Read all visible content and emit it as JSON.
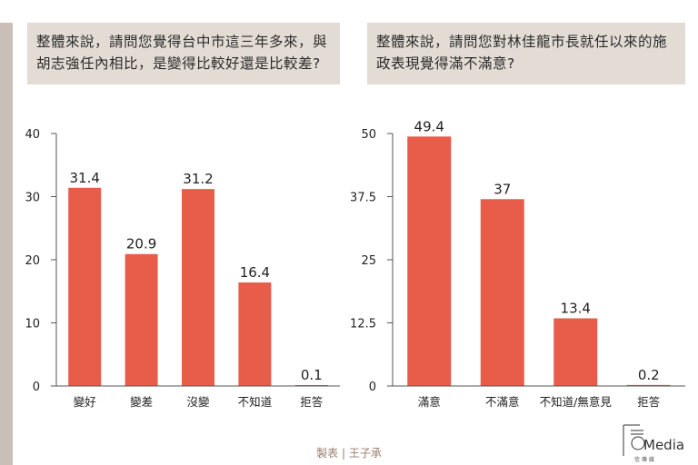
{
  "questions": {
    "left": "整體來說，請問您覺得台中市這三年多來，與胡志強任內相比，是變得比較好還是比較差?",
    "right": "整體來說，請問您對林佳龍市長就任以來的施政表現覺得滿不滿意?"
  },
  "footer": {
    "credit": "製表 | 王子承"
  },
  "logo": {
    "text": "Media",
    "subtext": "信 傳 媒"
  },
  "colors": {
    "bar": "#e85c4a",
    "axis": "#555555",
    "background": "#ffffff",
    "question_box": "#e3dcd5"
  },
  "chart_data": [
    {
      "type": "bar",
      "categories": [
        "變好",
        "變差",
        "沒變",
        "不知道",
        "拒答"
      ],
      "values": [
        31.4,
        20.9,
        31.2,
        16.4,
        0.1
      ],
      "value_labels": [
        "31.4",
        "20.9",
        "31.2",
        "16.4",
        "0.1"
      ],
      "ylim": [
        0,
        40
      ],
      "yticks": [
        0,
        10,
        20,
        30,
        40
      ],
      "ytick_labels": [
        "0",
        "10",
        "20",
        "30",
        "40"
      ],
      "grid": false
    },
    {
      "type": "bar",
      "categories": [
        "滿意",
        "不滿意",
        "不知道/無意見",
        "拒答"
      ],
      "values": [
        49.4,
        37,
        13.4,
        0.2
      ],
      "value_labels": [
        "49.4",
        "37",
        "13.4",
        "0.2"
      ],
      "ylim": [
        0,
        50
      ],
      "yticks": [
        0,
        12.5,
        25,
        37.5,
        50
      ],
      "ytick_labels": [
        "0",
        "12.5",
        "25",
        "37.5",
        "50"
      ],
      "grid": false
    }
  ]
}
